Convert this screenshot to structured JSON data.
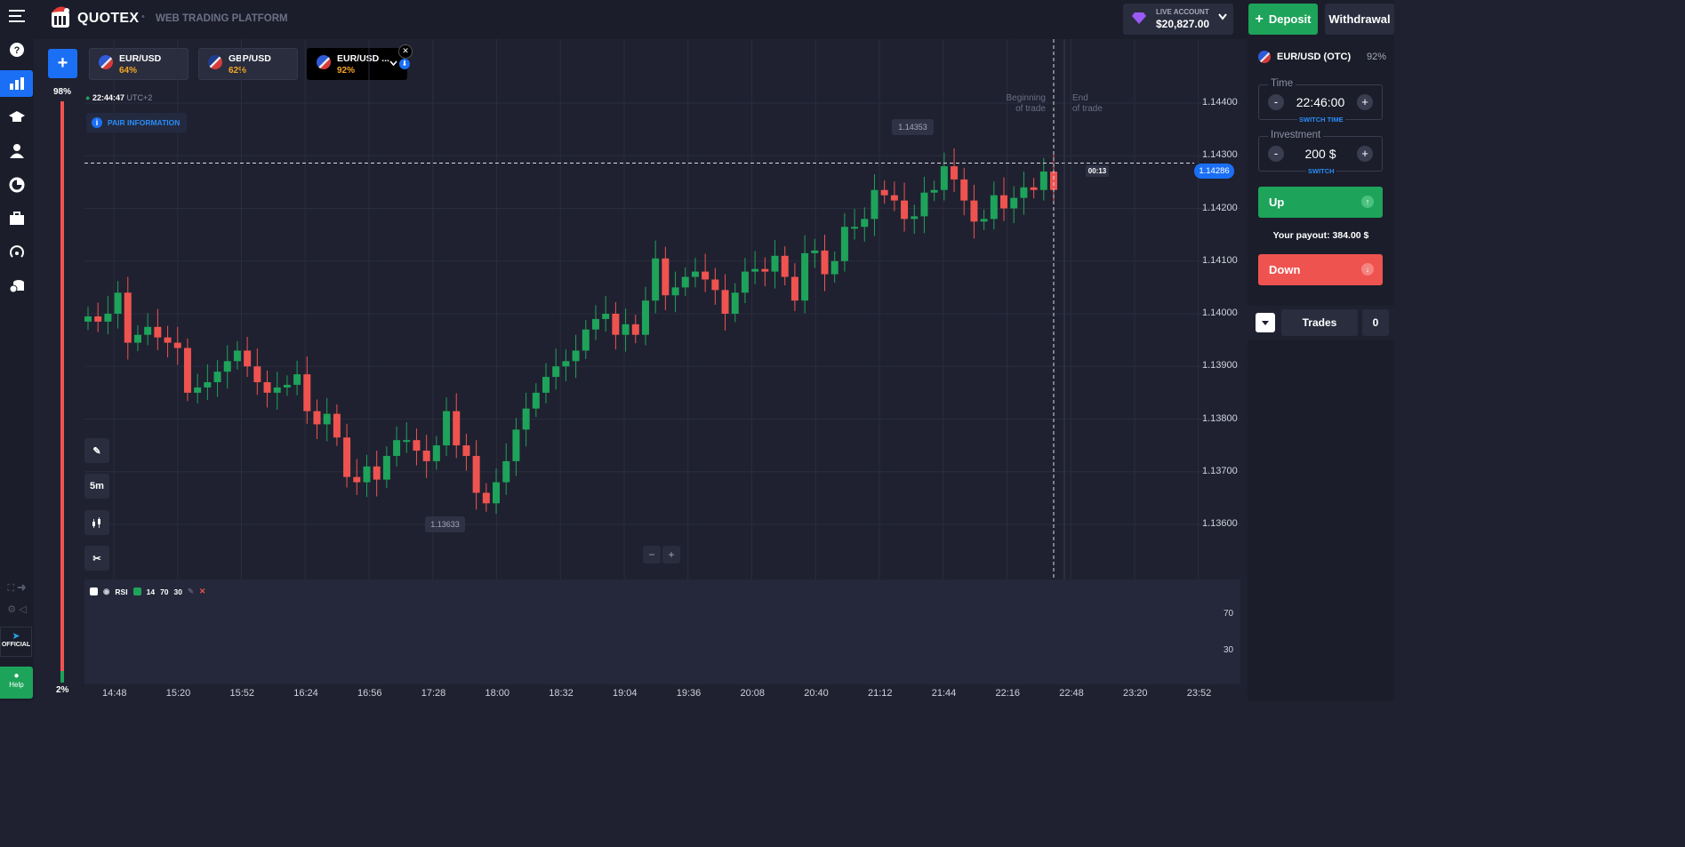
{
  "brand": {
    "name": "QUOTEX",
    "subtitle": "WEB TRADING PLATFORM"
  },
  "account": {
    "type": "LIVE ACCOUNT",
    "balance": "$20,827.00"
  },
  "header": {
    "deposit_label": "Deposit",
    "withdrawal_label": "Withdrawal"
  },
  "tabs": [
    {
      "name": "EUR/USD",
      "payout": "64%"
    },
    {
      "name": "GBP/USD",
      "payout": "62%"
    },
    {
      "name": "EUR/USD ...",
      "payout": "92%"
    }
  ],
  "sentiment": {
    "top": "98%",
    "bottom": "2%",
    "up_fraction": 0.98
  },
  "clock": {
    "time": "22:44:47",
    "tz": "UTC+2"
  },
  "pair_info_label": "PAIR INFORMATION",
  "annotations": {
    "max_price": "1.14353",
    "min_price": "1.13633",
    "current_price": "1.14286",
    "countdown": "00:13",
    "beginning": [
      "Beginning",
      "of trade"
    ],
    "end": [
      "End",
      "of trade"
    ]
  },
  "tools": {
    "timeframe": "5m"
  },
  "zoom": {
    "minus": "−",
    "plus": "+"
  },
  "rsi": {
    "name": "RSI",
    "period": "14",
    "upper": "70",
    "lower": "30",
    "level_upper_label": "70",
    "level_lower_label": "30"
  },
  "sidebar_bottom": {
    "official": "OFFICIAL",
    "help": "Help"
  },
  "panel": {
    "asset": "EUR/USD (OTC)",
    "asset_payout": "92%",
    "time_label": "Time",
    "time_value": "22:46:00",
    "switch_time": "SWITCH TIME",
    "investment_label": "Investment",
    "investment_value": "200 $",
    "switch": "SWITCH",
    "up_label": "Up",
    "payout_text": "Your payout:",
    "payout_value": "384.00 $",
    "down_label": "Down",
    "trades_label": "Trades",
    "trades_count": "0"
  },
  "colors": {
    "up": "#1ea35a",
    "down": "#ef5350",
    "accent": "#1b6ff5",
    "bg": "#1f2130"
  },
  "chart_data": {
    "type": "candlestick",
    "y_ticks": [
      "1.14400",
      "1.14300",
      "1.14200",
      "1.14100",
      "1.14000",
      "1.13900",
      "1.13800",
      "1.13700",
      "1.13600"
    ],
    "x_ticks": [
      "14:48",
      "15:20",
      "15:52",
      "16:24",
      "16:56",
      "17:28",
      "18:00",
      "18:32",
      "19:04",
      "19:36",
      "20:08",
      "20:40",
      "21:12",
      "21:44",
      "22:16",
      "22:48",
      "23:20",
      "23:52"
    ],
    "ylim": [
      1.1355,
      1.145
    ],
    "grid": true,
    "candles": [
      [
        1.13985,
        1.13995
      ],
      [
        1.13995,
        1.13985
      ],
      [
        1.13985,
        1.14
      ],
      [
        1.14,
        1.1404
      ],
      [
        1.1404,
        1.13945
      ],
      [
        1.13945,
        1.1396
      ],
      [
        1.1396,
        1.13975
      ],
      [
        1.13975,
        1.13955
      ],
      [
        1.13955,
        1.13945
      ],
      [
        1.13945,
        1.13935
      ],
      [
        1.13935,
        1.1385
      ],
      [
        1.1385,
        1.1386
      ],
      [
        1.1386,
        1.1387
      ],
      [
        1.1387,
        1.1389
      ],
      [
        1.1389,
        1.1391
      ],
      [
        1.1391,
        1.1393
      ],
      [
        1.1393,
        1.139
      ],
      [
        1.139,
        1.1387
      ],
      [
        1.1387,
        1.1385
      ],
      [
        1.1385,
        1.1386
      ],
      [
        1.1386,
        1.13865
      ],
      [
        1.13865,
        1.13885
      ],
      [
        1.13885,
        1.13815
      ],
      [
        1.13815,
        1.1379
      ],
      [
        1.1379,
        1.1381
      ],
      [
        1.1381,
        1.13765
      ],
      [
        1.13765,
        1.1369
      ],
      [
        1.1369,
        1.1368
      ],
      [
        1.1368,
        1.1371
      ],
      [
        1.1371,
        1.13685
      ],
      [
        1.13685,
        1.1373
      ],
      [
        1.1373,
        1.1376
      ],
      [
        1.1376,
        1.1376
      ],
      [
        1.1376,
        1.1374
      ],
      [
        1.1374,
        1.1372
      ],
      [
        1.1372,
        1.1375
      ],
      [
        1.1375,
        1.13815
      ],
      [
        1.13815,
        1.1375
      ],
      [
        1.1375,
        1.1373
      ],
      [
        1.1373,
        1.1366
      ],
      [
        1.1366,
        1.1364
      ],
      [
        1.1364,
        1.1368
      ],
      [
        1.1368,
        1.1372
      ],
      [
        1.1372,
        1.1378
      ],
      [
        1.1378,
        1.1382
      ],
      [
        1.1382,
        1.1385
      ],
      [
        1.1385,
        1.1388
      ],
      [
        1.1388,
        1.139
      ],
      [
        1.139,
        1.1391
      ],
      [
        1.1391,
        1.1393
      ],
      [
        1.1393,
        1.1397
      ],
      [
        1.1397,
        1.1399
      ],
      [
        1.1399,
        1.14
      ],
      [
        1.14,
        1.1396
      ],
      [
        1.1396,
        1.1398
      ],
      [
        1.1398,
        1.1396
      ],
      [
        1.1396,
        1.14025
      ],
      [
        1.14025,
        1.14105
      ],
      [
        1.14105,
        1.14035
      ],
      [
        1.14035,
        1.1405
      ],
      [
        1.1405,
        1.1407
      ],
      [
        1.1407,
        1.1408
      ],
      [
        1.1408,
        1.14065
      ],
      [
        1.14065,
        1.14045
      ],
      [
        1.14045,
        1.14
      ],
      [
        1.14,
        1.1404
      ],
      [
        1.1404,
        1.1408
      ],
      [
        1.1408,
        1.14085
      ],
      [
        1.14085,
        1.1408
      ],
      [
        1.1408,
        1.1411
      ],
      [
        1.1411,
        1.1407
      ],
      [
        1.1407,
        1.14025
      ],
      [
        1.14025,
        1.14115
      ],
      [
        1.14115,
        1.1412
      ],
      [
        1.1412,
        1.14075
      ],
      [
        1.14075,
        1.141
      ],
      [
        1.141,
        1.14165
      ],
      [
        1.14165,
        1.14165
      ],
      [
        1.14165,
        1.1418
      ],
      [
        1.1418,
        1.14235
      ],
      [
        1.14235,
        1.14225
      ],
      [
        1.14225,
        1.14215
      ],
      [
        1.14215,
        1.1418
      ],
      [
        1.1418,
        1.14185
      ],
      [
        1.14185,
        1.1423
      ],
      [
        1.1423,
        1.14235
      ],
      [
        1.14235,
        1.1428
      ],
      [
        1.1428,
        1.14255
      ],
      [
        1.14255,
        1.14215
      ],
      [
        1.14215,
        1.14175
      ],
      [
        1.14175,
        1.1418
      ],
      [
        1.1418,
        1.14225
      ],
      [
        1.14225,
        1.142
      ],
      [
        1.142,
        1.1422
      ],
      [
        1.1422,
        1.1424
      ],
      [
        1.1424,
        1.14235
      ],
      [
        1.14235,
        1.1427
      ],
      [
        1.1427,
        1.14235
      ]
    ]
  }
}
